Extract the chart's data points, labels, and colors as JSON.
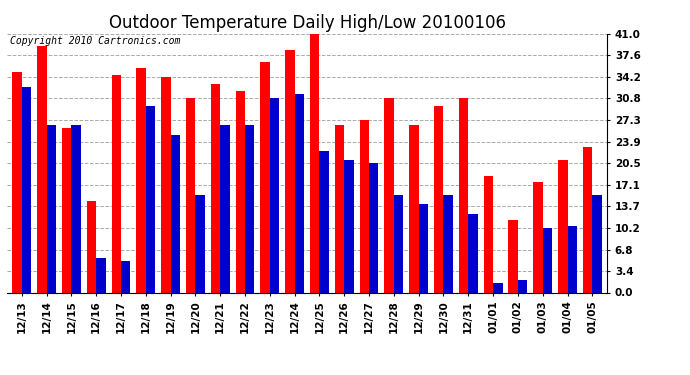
{
  "title": "Outdoor Temperature Daily High/Low 20100106",
  "copyright": "Copyright 2010 Cartronics.com",
  "dates": [
    "12/13",
    "12/14",
    "12/15",
    "12/16",
    "12/17",
    "12/18",
    "12/19",
    "12/20",
    "12/21",
    "12/22",
    "12/23",
    "12/24",
    "12/25",
    "12/26",
    "12/27",
    "12/28",
    "12/29",
    "12/30",
    "12/31",
    "01/01",
    "01/02",
    "01/03",
    "01/04",
    "01/05"
  ],
  "highs": [
    35.0,
    39.0,
    26.0,
    14.5,
    34.5,
    35.5,
    34.2,
    30.8,
    33.0,
    32.0,
    36.5,
    38.5,
    41.0,
    26.5,
    27.3,
    30.8,
    26.5,
    29.5,
    30.8,
    18.5,
    11.5,
    17.5,
    21.0,
    23.0
  ],
  "lows": [
    32.5,
    26.5,
    26.5,
    5.5,
    5.0,
    29.5,
    25.0,
    15.5,
    26.5,
    26.5,
    30.8,
    31.5,
    22.5,
    21.0,
    20.5,
    15.5,
    14.0,
    15.5,
    12.5,
    1.5,
    2.0,
    10.2,
    10.5,
    15.5
  ],
  "high_color": "#ff0000",
  "low_color": "#0000cc",
  "bg_color": "#ffffff",
  "grid_color": "#aaaaaa",
  "ylim": [
    0,
    41.0
  ],
  "yticks": [
    0.0,
    3.4,
    6.8,
    10.2,
    13.7,
    17.1,
    20.5,
    23.9,
    27.3,
    30.8,
    34.2,
    37.6,
    41.0
  ],
  "bar_width": 0.38,
  "title_fontsize": 12,
  "tick_fontsize": 7.5,
  "copyright_fontsize": 7
}
